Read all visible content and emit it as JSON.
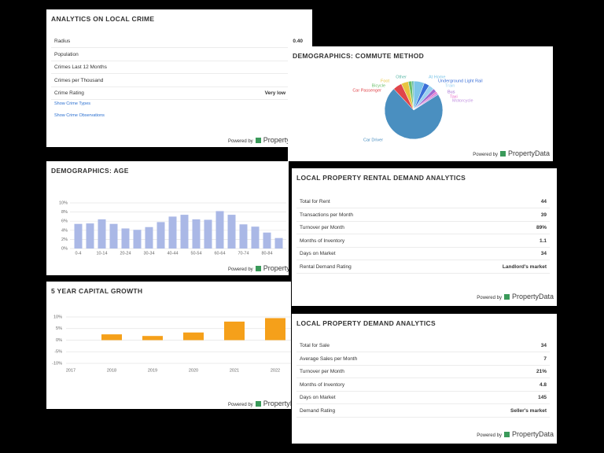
{
  "footer": {
    "powered_by": "Powered by",
    "brand": "PropertyData"
  },
  "crime_table": {
    "title": "ANALYTICS ON LOCAL CRIME",
    "rows": [
      {
        "label": "Radius",
        "value": "0.40"
      },
      {
        "label": "Population"
      },
      {
        "label": "Crimes Last 12 Months"
      },
      {
        "label": "Crimes per Thousand"
      },
      {
        "label": "Crime Rating",
        "value": "Very low"
      }
    ],
    "links": [
      "Show Crime Types",
      "Show Crime Observations"
    ]
  },
  "rental_table": {
    "title": "LOCAL PROPERTY RENTAL DEMAND ANALYTICS",
    "rows": [
      {
        "label": "Total for Rent",
        "value": "44"
      },
      {
        "label": "Transactions per Month",
        "value": "39"
      },
      {
        "label": "Turnover per Month",
        "value": "89%"
      },
      {
        "label": "Months of Inventory",
        "value": "1.1"
      },
      {
        "label": "Days on Market",
        "value": "34"
      },
      {
        "label": "Rental Demand Rating",
        "value": "Landlord's market"
      }
    ]
  },
  "demand_table": {
    "title": "LOCAL PROPERTY DEMAND ANALYTICS",
    "rows": [
      {
        "label": "Total for Sale",
        "value": "34"
      },
      {
        "label": "Average Sales per Month",
        "value": "7"
      },
      {
        "label": "Turnover per Month",
        "value": "21%"
      },
      {
        "label": "Months of Inventory",
        "value": "4.8"
      },
      {
        "label": "Days on Market",
        "value": "145"
      },
      {
        "label": "Demand Rating",
        "value": "Seller's market"
      }
    ]
  },
  "chart_data": [
    {
      "type": "pie",
      "title": "DEMOGRAPHICS: COMMUTE METHOD",
      "categories": [
        "At Home",
        "Underground Light Rail",
        "Train",
        "Bus",
        "Taxi",
        "Motorcycle",
        "Car Driver",
        "Car Passenger",
        "Foot",
        "Bicycle",
        "Other"
      ],
      "values": [
        6,
        3,
        3,
        2,
        1,
        1,
        72,
        5,
        4,
        2,
        1
      ],
      "colors": [
        "#7cc4e8",
        "#3a6fd8",
        "#9ad0f0",
        "#a06ad0",
        "#e86ac8",
        "#c090e0",
        "#4a8fc0",
        "#e0454a",
        "#e8c440",
        "#6bbf6a",
        "#5cb8a8"
      ]
    },
    {
      "type": "bar",
      "title": "DEMOGRAPHICS: AGE",
      "categories": [
        "0-4",
        null,
        "10-14",
        null,
        "20-24",
        null,
        "30-34",
        null,
        "40-44",
        null,
        "50-54",
        null,
        "60-64",
        null,
        "70-74",
        null,
        "80-84",
        null
      ],
      "values": [
        5.4,
        5.5,
        6.4,
        5.4,
        4.4,
        4.1,
        4.7,
        5.8,
        7.0,
        7.4,
        6.4,
        6.3,
        8.2,
        7.4,
        5.3,
        4.8,
        3.5,
        2.3
      ],
      "color": "#aab8e6",
      "ylim": [
        0,
        10
      ],
      "yticks": [
        {
          "value": 0,
          "label": "0%"
        },
        {
          "value": 2,
          "label": "2%"
        },
        {
          "value": 4,
          "label": "4%"
        },
        {
          "value": 6,
          "label": "6%"
        },
        {
          "value": 8,
          "label": "8%"
        },
        {
          "value": 10,
          "label": "10%"
        }
      ],
      "grid": true
    },
    {
      "type": "bar",
      "title": "5 YEAR CAPITAL GROWTH",
      "categories": [
        "2017",
        "2018",
        "2019",
        "2020",
        "2021",
        "2022"
      ],
      "values": [
        null,
        2.5,
        1.8,
        3.3,
        8.0,
        9.5
      ],
      "color": "#f5a01a",
      "ylim": [
        -10,
        10
      ],
      "yticks": [
        {
          "value": -10,
          "label": "-10%"
        },
        {
          "value": -5,
          "label": "-5%"
        },
        {
          "value": 0,
          "label": "0%"
        },
        {
          "value": 5,
          "label": "5%"
        },
        {
          "value": 10,
          "label": "10%"
        }
      ],
      "grid": true
    }
  ]
}
